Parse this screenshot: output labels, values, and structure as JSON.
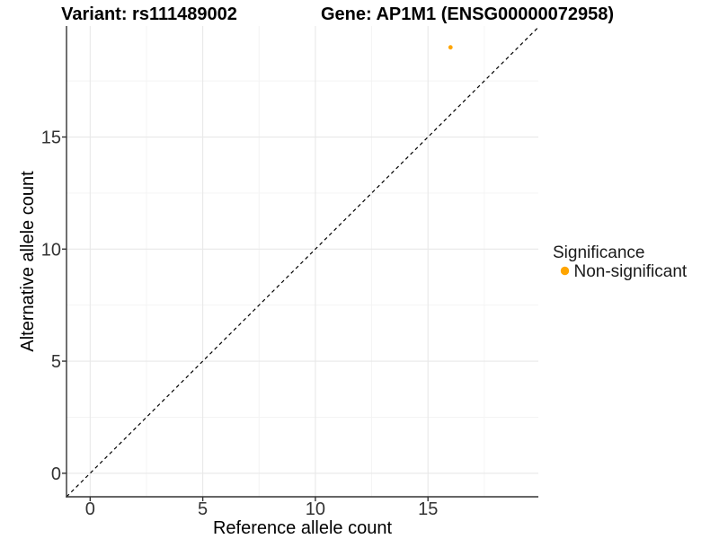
{
  "chart_data": {
    "type": "scatter",
    "titles": {
      "left": "Variant: rs111489002",
      "right": "Gene: AP1M1 (ENSG00000072958)"
    },
    "xlabel": "Reference allele count",
    "ylabel": "Alternative allele count",
    "xlim": [
      -1.05,
      19.9
    ],
    "ylim": [
      -1.05,
      19.95
    ],
    "x_tick_values": [
      0,
      5,
      10,
      15
    ],
    "y_tick_values": [
      0,
      5,
      10,
      15
    ],
    "x_minor_tick_values": [
      2.5,
      7.5,
      12.5,
      17.5
    ],
    "y_minor_tick_values": [
      2.5,
      7.5,
      12.5,
      17.5
    ],
    "grid": "major+minor",
    "reference_line": {
      "type": "identity",
      "slope": 1,
      "intercept": 0,
      "style": "dashed",
      "color": "#000000"
    },
    "series": [
      {
        "name": "Non-significant",
        "color": "#FFA500",
        "points": [
          {
            "x": 16,
            "y": 19
          }
        ]
      }
    ],
    "legend": {
      "title": "Significance",
      "position": "right",
      "entries": [
        {
          "label": "Non-significant",
          "color": "#FFA500"
        }
      ]
    },
    "colors": {
      "major_grid": "#e8e8e8",
      "minor_grid": "#f3f3f3",
      "axis_line": "#333333",
      "tick_mark": "#333333"
    }
  }
}
